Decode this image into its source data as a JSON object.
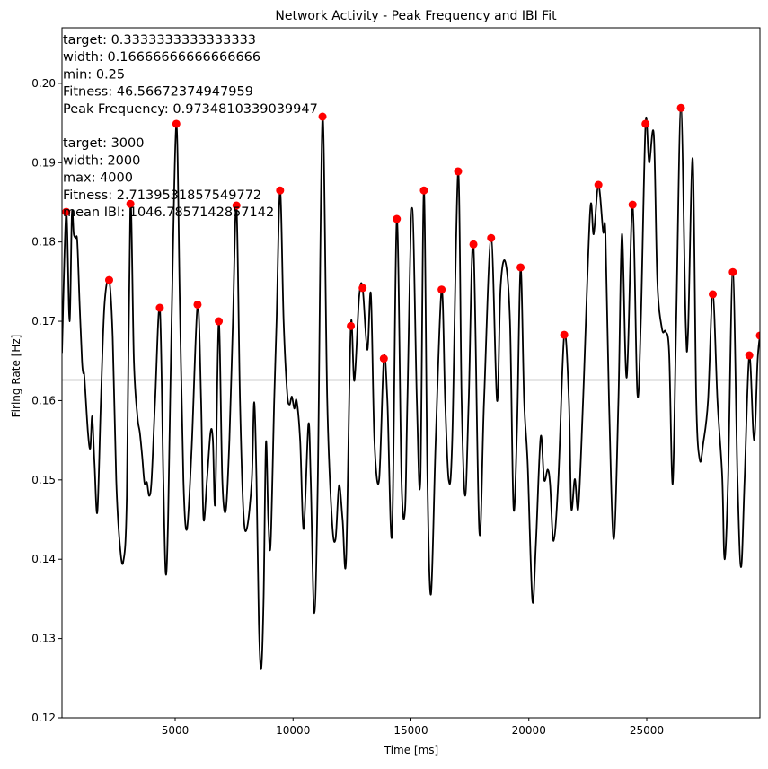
{
  "chart_data": {
    "type": "line",
    "title": "Network Activity - Peak Frequency and IBI Fit",
    "xlabel": "Time [ms]",
    "ylabel": "Firing Rate [Hz]",
    "xlim": [
      200,
      29800
    ],
    "ylim": [
      0.12,
      0.207
    ],
    "xticks": [
      5000,
      10000,
      15000,
      20000,
      25000
    ],
    "yticks": [
      0.12,
      0.13,
      0.14,
      0.15,
      0.16,
      0.17,
      0.18,
      0.19,
      0.2
    ],
    "grid": false,
    "series": [
      {
        "values": [
          [
            200,
            0.166
          ],
          [
            380,
            0.1838
          ],
          [
            520,
            0.17
          ],
          [
            620,
            0.1835
          ],
          [
            700,
            0.181
          ],
          [
            780,
            0.1805
          ],
          [
            850,
            0.18
          ],
          [
            950,
            0.172
          ],
          [
            1050,
            0.165
          ],
          [
            1100,
            0.1635
          ],
          [
            1150,
            0.163
          ],
          [
            1300,
            0.156
          ],
          [
            1400,
            0.154
          ],
          [
            1480,
            0.158
          ],
          [
            1580,
            0.152
          ],
          [
            1700,
            0.146
          ],
          [
            1850,
            0.16
          ],
          [
            2000,
            0.172
          ],
          [
            2200,
            0.1752
          ],
          [
            2350,
            0.168
          ],
          [
            2500,
            0.15
          ],
          [
            2650,
            0.142
          ],
          [
            2800,
            0.1397
          ],
          [
            2950,
            0.148
          ],
          [
            3100,
            0.1848
          ],
          [
            3250,
            0.165
          ],
          [
            3400,
            0.158
          ],
          [
            3500,
            0.156
          ],
          [
            3600,
            0.153
          ],
          [
            3700,
            0.1496
          ],
          [
            3800,
            0.1497
          ],
          [
            3900,
            0.148
          ],
          [
            4000,
            0.15
          ],
          [
            4150,
            0.16
          ],
          [
            4350,
            0.1717
          ],
          [
            4500,
            0.15
          ],
          [
            4600,
            0.1382
          ],
          [
            4700,
            0.145
          ],
          [
            4850,
            0.17
          ],
          [
            5050,
            0.1949
          ],
          [
            5200,
            0.172
          ],
          [
            5350,
            0.15
          ],
          [
            5500,
            0.1438
          ],
          [
            5700,
            0.154
          ],
          [
            5950,
            0.1721
          ],
          [
            6100,
            0.16
          ],
          [
            6200,
            0.1452
          ],
          [
            6350,
            0.15
          ],
          [
            6500,
            0.156
          ],
          [
            6600,
            0.155
          ],
          [
            6700,
            0.1472
          ],
          [
            6850,
            0.17
          ],
          [
            7000,
            0.15
          ],
          [
            7150,
            0.1462
          ],
          [
            7300,
            0.155
          ],
          [
            7450,
            0.17
          ],
          [
            7600,
            0.1846
          ],
          [
            7750,
            0.16
          ],
          [
            7900,
            0.1457
          ],
          [
            8050,
            0.144
          ],
          [
            8250,
            0.15
          ],
          [
            8350,
            0.1598
          ],
          [
            8450,
            0.15
          ],
          [
            8550,
            0.132
          ],
          [
            8650,
            0.1262
          ],
          [
            8750,
            0.135
          ],
          [
            8850,
            0.1547
          ],
          [
            8950,
            0.145
          ],
          [
            9050,
            0.142
          ],
          [
            9200,
            0.16
          ],
          [
            9300,
            0.17
          ],
          [
            9450,
            0.1865
          ],
          [
            9600,
            0.17
          ],
          [
            9750,
            0.161
          ],
          [
            9850,
            0.1595
          ],
          [
            9950,
            0.1605
          ],
          [
            10050,
            0.159
          ],
          [
            10150,
            0.16
          ],
          [
            10300,
            0.155
          ],
          [
            10450,
            0.1438
          ],
          [
            10650,
            0.157
          ],
          [
            10750,
            0.15
          ],
          [
            10900,
            0.1332
          ],
          [
            11050,
            0.15
          ],
          [
            11250,
            0.1958
          ],
          [
            11450,
            0.16
          ],
          [
            11650,
            0.145
          ],
          [
            11800,
            0.1425
          ],
          [
            11950,
            0.1493
          ],
          [
            12100,
            0.145
          ],
          [
            12250,
            0.14
          ],
          [
            12450,
            0.1694
          ],
          [
            12600,
            0.1625
          ],
          [
            12800,
            0.173
          ],
          [
            12950,
            0.1742
          ],
          [
            13150,
            0.1664
          ],
          [
            13300,
            0.1734
          ],
          [
            13450,
            0.155
          ],
          [
            13650,
            0.15
          ],
          [
            13850,
            0.1653
          ],
          [
            14000,
            0.16
          ],
          [
            14200,
            0.1432
          ],
          [
            14400,
            0.1829
          ],
          [
            14600,
            0.15
          ],
          [
            14750,
            0.1462
          ],
          [
            14850,
            0.16
          ],
          [
            15050,
            0.1843
          ],
          [
            15250,
            0.16
          ],
          [
            15400,
            0.15
          ],
          [
            15550,
            0.1865
          ],
          [
            15700,
            0.15
          ],
          [
            15850,
            0.1356
          ],
          [
            16050,
            0.155
          ],
          [
            16300,
            0.174
          ],
          [
            16450,
            0.16
          ],
          [
            16600,
            0.15
          ],
          [
            16750,
            0.155
          ],
          [
            17000,
            0.1889
          ],
          [
            17150,
            0.16
          ],
          [
            17300,
            0.148
          ],
          [
            17450,
            0.16
          ],
          [
            17650,
            0.1797
          ],
          [
            17900,
            0.1435
          ],
          [
            18100,
            0.16
          ],
          [
            18400,
            0.1805
          ],
          [
            18650,
            0.16
          ],
          [
            18800,
            0.1742
          ],
          [
            19000,
            0.1775
          ],
          [
            19200,
            0.17
          ],
          [
            19350,
            0.1465
          ],
          [
            19500,
            0.1566
          ],
          [
            19650,
            0.1768
          ],
          [
            19800,
            0.16
          ],
          [
            19950,
            0.152
          ],
          [
            20150,
            0.1348
          ],
          [
            20300,
            0.142
          ],
          [
            20500,
            0.1554
          ],
          [
            20650,
            0.15
          ],
          [
            20800,
            0.1513
          ],
          [
            20900,
            0.1495
          ],
          [
            21050,
            0.1423
          ],
          [
            21250,
            0.15
          ],
          [
            21500,
            0.1683
          ],
          [
            21700,
            0.16
          ],
          [
            21800,
            0.1465
          ],
          [
            21950,
            0.1501
          ],
          [
            22100,
            0.1465
          ],
          [
            22300,
            0.16
          ],
          [
            22600,
            0.1839
          ],
          [
            22750,
            0.181
          ],
          [
            22950,
            0.1872
          ],
          [
            23150,
            0.1813
          ],
          [
            23250,
            0.181
          ],
          [
            23400,
            0.16
          ],
          [
            23600,
            0.1425
          ],
          [
            23800,
            0.16
          ],
          [
            23950,
            0.181
          ],
          [
            24150,
            0.1629
          ],
          [
            24400,
            0.1847
          ],
          [
            24600,
            0.161
          ],
          [
            24750,
            0.17
          ],
          [
            24950,
            0.1949
          ],
          [
            25100,
            0.19
          ],
          [
            25300,
            0.1935
          ],
          [
            25450,
            0.175
          ],
          [
            25650,
            0.169
          ],
          [
            25800,
            0.1687
          ],
          [
            25950,
            0.166
          ],
          [
            26100,
            0.1495
          ],
          [
            26250,
            0.17
          ],
          [
            26450,
            0.1969
          ],
          [
            26650,
            0.17
          ],
          [
            26750,
            0.1685
          ],
          [
            26950,
            0.1905
          ],
          [
            27100,
            0.16
          ],
          [
            27250,
            0.1525
          ],
          [
            27400,
            0.1547
          ],
          [
            27600,
            0.16
          ],
          [
            27800,
            0.1734
          ],
          [
            28000,
            0.16
          ],
          [
            28200,
            0.1505
          ],
          [
            28300,
            0.14
          ],
          [
            28450,
            0.15
          ],
          [
            28650,
            0.1762
          ],
          [
            28850,
            0.15
          ],
          [
            29000,
            0.139
          ],
          [
            29150,
            0.15
          ],
          [
            29350,
            0.1657
          ],
          [
            29550,
            0.155
          ],
          [
            29700,
            0.165
          ],
          [
            29800,
            0.1682
          ]
        ],
        "color": "#000000"
      }
    ],
    "peaks": [
      [
        380,
        0.1838
      ],
      [
        2200,
        0.1752
      ],
      [
        3100,
        0.1848
      ],
      [
        4350,
        0.1717
      ],
      [
        5050,
        0.1949
      ],
      [
        5950,
        0.1721
      ],
      [
        6850,
        0.17
      ],
      [
        7600,
        0.1846
      ],
      [
        9450,
        0.1865
      ],
      [
        11250,
        0.1958
      ],
      [
        12450,
        0.1694
      ],
      [
        12950,
        0.1742
      ],
      [
        13850,
        0.1653
      ],
      [
        14400,
        0.1829
      ],
      [
        15550,
        0.1865
      ],
      [
        16300,
        0.174
      ],
      [
        17000,
        0.1889
      ],
      [
        17650,
        0.1797
      ],
      [
        18400,
        0.1805
      ],
      [
        19650,
        0.1768
      ],
      [
        21500,
        0.1683
      ],
      [
        22950,
        0.1872
      ],
      [
        24400,
        0.1847
      ],
      [
        24950,
        0.1949
      ],
      [
        26450,
        0.1969
      ],
      [
        27800,
        0.1734
      ],
      [
        28650,
        0.1762
      ],
      [
        29350,
        0.1657
      ],
      [
        29800,
        0.1682
      ]
    ],
    "peak_color": "#ff0000",
    "threshold_line": {
      "y": 0.1626,
      "color": "#999999"
    },
    "annotation_lines": [
      "target: 0.3333333333333333",
      "width: 0.16666666666666666",
      "min: 0.25",
      "Fitness: 46.56672374947959",
      "Peak Frequency: 0.9734810339039947",
      "",
      "target: 3000",
      "width: 2000",
      "max: 4000",
      "Fitness: 2.7139531857549772",
      "mean IBI: 1046.7857142857142"
    ]
  }
}
